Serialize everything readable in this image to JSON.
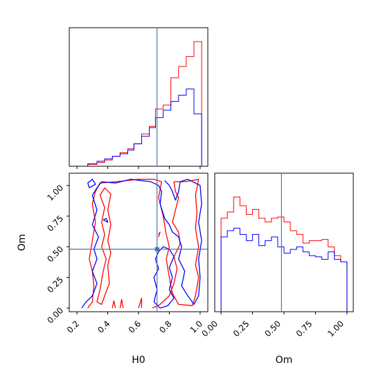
{
  "colors": {
    "series_red": "#ff0000",
    "series_blue": "#0000ff",
    "truth_line": "#4477aa",
    "frame": "#000000"
  },
  "chart_data": {
    "type": "corner",
    "parameters": [
      "H0",
      "Om"
    ],
    "truth": {
      "H0": 0.72,
      "Om": 0.48
    },
    "series": [
      {
        "color": "red"
      },
      {
        "color": "blue"
      }
    ],
    "panels": [
      {
        "id": "h0-hist",
        "type": "histogram-step",
        "xlim": [
          0.15,
          1.05
        ],
        "ylim": [
          0,
          1
        ],
        "bin_edges": [
          0.27,
          0.33,
          0.38,
          0.43,
          0.48,
          0.53,
          0.57,
          0.62,
          0.67,
          0.71,
          0.76,
          0.81,
          0.86,
          0.91,
          0.96,
          1.01
        ],
        "series": [
          {
            "color": "red",
            "heights": [
              0.015,
              0.03,
              0.05,
              0.08,
              0.11,
              0.14,
              0.18,
              0.26,
              0.32,
              0.46,
              0.49,
              0.71,
              0.8,
              0.88,
              1.0
            ]
          },
          {
            "color": "blue",
            "heights": [
              0.02,
              0.04,
              0.06,
              0.08,
              0.1,
              0.13,
              0.18,
              0.24,
              0.31,
              0.39,
              0.45,
              0.52,
              0.57,
              0.62,
              0.42
            ]
          }
        ],
        "tick_positions": [
          0.2,
          0.4,
          0.6,
          0.8,
          1.0
        ]
      },
      {
        "id": "om-hist",
        "type": "histogram-step",
        "xlim": [
          -0.05,
          1.05
        ],
        "ylim": [
          0,
          1
        ],
        "bin_edges": [
          0.0,
          0.05,
          0.1,
          0.15,
          0.2,
          0.25,
          0.3,
          0.35,
          0.4,
          0.45,
          0.5,
          0.55,
          0.6,
          0.65,
          0.7,
          0.75,
          0.8,
          0.85,
          0.9,
          0.95,
          1.0
        ],
        "series": [
          {
            "color": "red",
            "heights": [
              0.75,
              0.8,
              0.92,
              0.85,
              0.78,
              0.82,
              0.75,
              0.72,
              0.75,
              0.76,
              0.72,
              0.65,
              0.62,
              0.55,
              0.57,
              0.57,
              0.58,
              0.52,
              0.45,
              0.4
            ]
          },
          {
            "color": "blue",
            "heights": [
              0.6,
              0.65,
              0.67,
              0.62,
              0.57,
              0.62,
              0.53,
              0.57,
              0.6,
              0.52,
              0.47,
              0.5,
              0.52,
              0.48,
              0.45,
              0.44,
              0.42,
              0.48,
              0.42,
              0.4
            ]
          }
        ],
        "tick_labels": [
          "0.00",
          "0.25",
          "0.50",
          "0.75",
          "1.00"
        ],
        "tick_positions": [
          0.0,
          0.25,
          0.5,
          0.75,
          1.0
        ]
      },
      {
        "id": "scatter-2d",
        "type": "contour",
        "xlim": [
          0.15,
          1.05
        ],
        "ylim": [
          -0.03,
          1.1
        ],
        "x_tick_labels": [
          "0.2",
          "0.4",
          "0.6",
          "0.8",
          "1.0"
        ],
        "x_tick_positions": [
          0.2,
          0.4,
          0.6,
          0.8,
          1.0
        ],
        "y_tick_labels": [
          "0.00",
          "0.25",
          "0.50",
          "0.75",
          "1.00"
        ],
        "y_tick_positions": [
          0.0,
          0.25,
          0.5,
          0.75,
          1.0
        ],
        "contours": [
          {
            "color": "red",
            "points": [
              [
                0.27,
                0.0
              ],
              [
                0.3,
                0.05
              ],
              [
                0.31,
                0.18
              ],
              [
                0.3,
                0.3
              ],
              [
                0.28,
                0.4
              ],
              [
                0.3,
                0.55
              ],
              [
                0.32,
                0.7
              ],
              [
                0.3,
                0.85
              ],
              [
                0.32,
                0.95
              ],
              [
                0.35,
                1.02
              ],
              [
                0.45,
                1.03
              ],
              [
                0.6,
                1.05
              ],
              [
                0.7,
                1.05
              ],
              [
                0.75,
                1.03
              ],
              [
                0.73,
                0.9
              ],
              [
                0.76,
                0.75
              ],
              [
                0.78,
                0.6
              ],
              [
                0.8,
                0.5
              ],
              [
                0.78,
                0.4
              ],
              [
                0.8,
                0.25
              ],
              [
                0.82,
                0.12
              ],
              [
                0.86,
                0.03
              ],
              [
                0.95,
                0.02
              ],
              [
                0.97,
                0.1
              ],
              [
                0.99,
                0.25
              ],
              [
                0.97,
                0.35
              ],
              [
                0.99,
                0.5
              ],
              [
                0.97,
                0.65
              ],
              [
                0.98,
                0.78
              ],
              [
                0.97,
                0.92
              ],
              [
                0.99,
                1.05
              ],
              [
                0.9,
                1.03
              ],
              [
                0.83,
                1.03
              ],
              [
                0.84,
                0.95
              ],
              [
                0.86,
                0.9
              ],
              [
                0.84,
                0.8
              ],
              [
                0.82,
                0.7
              ],
              [
                0.86,
                0.62
              ],
              [
                0.87,
                0.52
              ],
              [
                0.83,
                0.42
              ],
              [
                0.85,
                0.32
              ],
              [
                0.83,
                0.2
              ],
              [
                0.8,
                0.1
              ],
              [
                0.74,
                0.03
              ],
              [
                0.69,
                0.0
              ]
            ]
          },
          {
            "color": "red",
            "points": [
              [
                0.37,
                0.3
              ],
              [
                0.39,
                0.4
              ],
              [
                0.36,
                0.5
              ],
              [
                0.38,
                0.6
              ],
              [
                0.36,
                0.7
              ],
              [
                0.38,
                0.82
              ],
              [
                0.35,
                0.92
              ],
              [
                0.38,
                0.98
              ],
              [
                0.42,
                0.93
              ],
              [
                0.4,
                0.8
              ],
              [
                0.42,
                0.68
              ],
              [
                0.4,
                0.55
              ],
              [
                0.42,
                0.45
              ],
              [
                0.4,
                0.35
              ],
              [
                0.41,
                0.2
              ],
              [
                0.38,
                0.1
              ],
              [
                0.36,
                0.03
              ],
              [
                0.33,
                0.05
              ],
              [
                0.35,
                0.15
              ],
              [
                0.37,
                0.3
              ]
            ]
          },
          {
            "color": "red",
            "points": [
              [
                0.6,
                0.0
              ],
              [
                0.62,
                0.08
              ],
              [
                0.62,
                0.0
              ]
            ]
          },
          {
            "color": "red",
            "points": [
              [
                0.48,
                0.0
              ],
              [
                0.49,
                0.07
              ],
              [
                0.5,
                0.0
              ]
            ]
          },
          {
            "color": "red",
            "points": [
              [
                0.43,
                0.0
              ],
              [
                0.44,
                0.06
              ],
              [
                0.45,
                0.0
              ]
            ]
          },
          {
            "color": "red",
            "points": [
              [
                0.73,
                0.58
              ],
              [
                0.74,
                0.62
              ],
              [
                0.73,
                0.6
              ]
            ]
          },
          {
            "color": "blue",
            "points": [
              [
                0.23,
                0.0
              ],
              [
                0.26,
                0.05
              ],
              [
                0.3,
                0.1
              ],
              [
                0.33,
                0.2
              ],
              [
                0.3,
                0.3
              ],
              [
                0.33,
                0.4
              ],
              [
                0.31,
                0.48
              ],
              [
                0.34,
                0.58
              ],
              [
                0.3,
                0.68
              ],
              [
                0.33,
                0.8
              ],
              [
                0.3,
                0.92
              ],
              [
                0.33,
                0.98
              ],
              [
                0.36,
                1.03
              ],
              [
                0.45,
                1.02
              ],
              [
                0.55,
                1.05
              ],
              [
                0.68,
                1.03
              ],
              [
                0.73,
                1.0
              ],
              [
                0.75,
                0.95
              ],
              [
                0.74,
                0.85
              ],
              [
                0.77,
                0.73
              ],
              [
                0.8,
                0.68
              ],
              [
                0.82,
                0.62
              ],
              [
                0.86,
                0.58
              ],
              [
                0.88,
                0.5
              ],
              [
                0.86,
                0.4
              ],
              [
                0.9,
                0.3
              ],
              [
                0.88,
                0.18
              ],
              [
                0.92,
                0.1
              ],
              [
                0.96,
                0.03
              ],
              [
                0.99,
                0.1
              ],
              [
                1.0,
                0.25
              ],
              [
                0.99,
                0.4
              ],
              [
                1.01,
                0.55
              ],
              [
                0.99,
                0.7
              ],
              [
                1.01,
                0.85
              ],
              [
                1.0,
                1.0
              ],
              [
                0.92,
                1.05
              ],
              [
                0.87,
                1.03
              ],
              [
                0.86,
                0.95
              ],
              [
                0.84,
                0.88
              ],
              [
                0.82,
                0.95
              ],
              [
                0.8,
                1.0
              ],
              [
                0.77,
                1.04
              ]
            ]
          },
          {
            "color": "blue",
            "points": [
              [
                0.7,
                0.05
              ],
              [
                0.72,
                0.15
              ],
              [
                0.7,
                0.25
              ],
              [
                0.73,
                0.32
              ],
              [
                0.71,
                0.4
              ],
              [
                0.73,
                0.46
              ],
              [
                0.76,
                0.5
              ],
              [
                0.8,
                0.48
              ],
              [
                0.83,
                0.42
              ],
              [
                0.8,
                0.33
              ],
              [
                0.82,
                0.25
              ],
              [
                0.8,
                0.15
              ],
              [
                0.83,
                0.08
              ],
              [
                0.79,
                0.02
              ],
              [
                0.74,
                0.0
              ],
              [
                0.7,
                0.05
              ]
            ]
          },
          {
            "color": "blue",
            "points": [
              [
                0.28,
                0.98
              ],
              [
                0.27,
                1.02
              ],
              [
                0.3,
                1.05
              ],
              [
                0.32,
                1.01
              ],
              [
                0.28,
                0.98
              ]
            ]
          },
          {
            "color": "blue",
            "points": [
              [
                0.37,
                0.72
              ],
              [
                0.4,
                0.7
              ],
              [
                0.39,
                0.73
              ],
              [
                0.37,
                0.72
              ]
            ]
          }
        ]
      }
    ]
  },
  "labels": {
    "x_h0": "H0",
    "x_om": "Om",
    "y_om": "Om"
  }
}
